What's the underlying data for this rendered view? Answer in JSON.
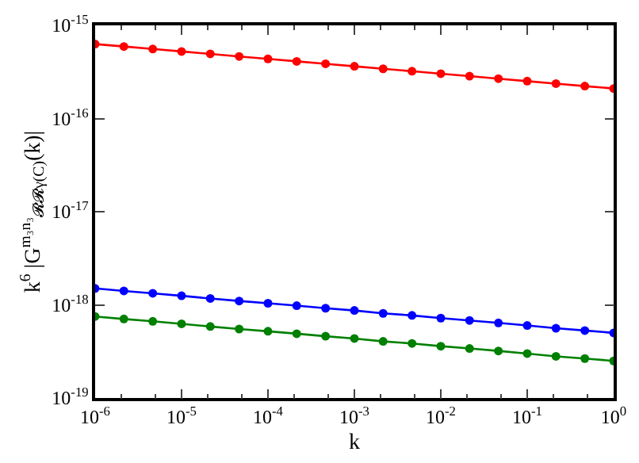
{
  "chart_data": {
    "type": "line",
    "xlabel": "k",
    "ylabel": "k$^{6}$ |G$^{m₃n₃}$$_{𝓡𝓡γ(C)}$(k)|",
    "x": [
      1e-06,
      2.15e-06,
      4.64e-06,
      1e-05,
      2.15e-05,
      4.64e-05,
      0.0001,
      0.000215,
      0.000464,
      0.001,
      0.00215,
      0.00464,
      0.01,
      0.0215,
      0.0464,
      0.1,
      0.215,
      0.464,
      1
    ],
    "series": [
      {
        "color": "#ff0000",
        "values": [
          6.3e-16,
          5.93e-16,
          5.58e-16,
          5.25e-16,
          4.94e-16,
          4.64e-16,
          4.37e-16,
          4.11e-16,
          3.87e-16,
          3.64e-16,
          3.42e-16,
          3.22e-16,
          3.03e-16,
          2.85e-16,
          2.68e-16,
          2.52e-16,
          2.37e-16,
          2.23e-16,
          2.1e-16
        ]
      },
      {
        "color": "#0000ff",
        "values": [
          1.5e-18,
          1.41e-18,
          1.33e-18,
          1.25e-18,
          1.17e-18,
          1.1e-18,
          1.04e-18,
          9.8e-19,
          9.2e-19,
          8.7e-19,
          8.1e-19,
          7.7e-19,
          7.2e-19,
          6.8e-19,
          6.4e-19,
          6e-19,
          5.6e-19,
          5.3e-19,
          5e-19
        ]
      },
      {
        "color": "#008000",
        "values": [
          7.5e-19,
          7.05e-19,
          6.65e-19,
          6.25e-19,
          5.85e-19,
          5.5e-19,
          5.2e-19,
          4.9e-19,
          4.6e-19,
          4.35e-19,
          4.05e-19,
          3.85e-19,
          3.6e-19,
          3.4e-19,
          3.2e-19,
          3e-19,
          2.8e-19,
          2.65e-19,
          2.5e-19
        ]
      }
    ],
    "log": "xy",
    "marker": "circle",
    "line_style": "solid",
    "xlim": [
      1e-06,
      1
    ],
    "xticks": [
      {
        "value": 1e-06,
        "label": "10$^{-6}$"
      },
      {
        "value": 1e-05,
        "label": "10$^{-5}$"
      },
      {
        "value": 0.0001,
        "label": "10$^{-4}$"
      },
      {
        "value": 0.001,
        "label": "10$^{-3}$"
      },
      {
        "value": 0.01,
        "label": "10$^{-2}$"
      },
      {
        "value": 0.1,
        "label": "10$^{-1}$"
      },
      {
        "value": 1,
        "label": "10$^{0}$"
      }
    ],
    "ylim": [
      1e-19,
      1e-15
    ],
    "yticks": [
      {
        "value": 1e-19,
        "label": "10$^{-19}$"
      },
      {
        "value": 1e-18,
        "label": "10$^{-18}$"
      },
      {
        "value": 1e-17,
        "label": "10$^{-17}$"
      },
      {
        "value": 1e-16,
        "label": "10$^{-16}$"
      },
      {
        "value": 1e-15,
        "label": "10$^{-15}$"
      }
    ]
  }
}
